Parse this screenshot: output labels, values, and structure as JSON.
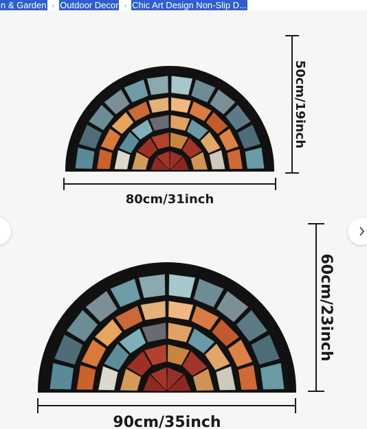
{
  "breadcrumb": {
    "items": [
      {
        "label": "n & Garden"
      },
      {
        "label": "Outdoor Decor"
      },
      {
        "label": "Chic Art Design Non-Slip D..."
      }
    ]
  },
  "product_image": {
    "small_mat": {
      "width_label": "80cm/31inch",
      "height_label": "50cm/19inch"
    },
    "large_mat": {
      "width_label": "90cm/35inch",
      "height_label": "60cm/23inch"
    }
  },
  "carousel": {
    "prev_icon": "chevron-left-icon",
    "next_icon": "chevron-right-icon"
  },
  "colors": {
    "mat_border": "#111111",
    "tile_center": "#dcdcd6",
    "tile_blue": "#5b8fa3",
    "tile_orange": "#d56a38",
    "tile_red": "#9a2a24",
    "dimension_line": "#1a1a1a"
  }
}
